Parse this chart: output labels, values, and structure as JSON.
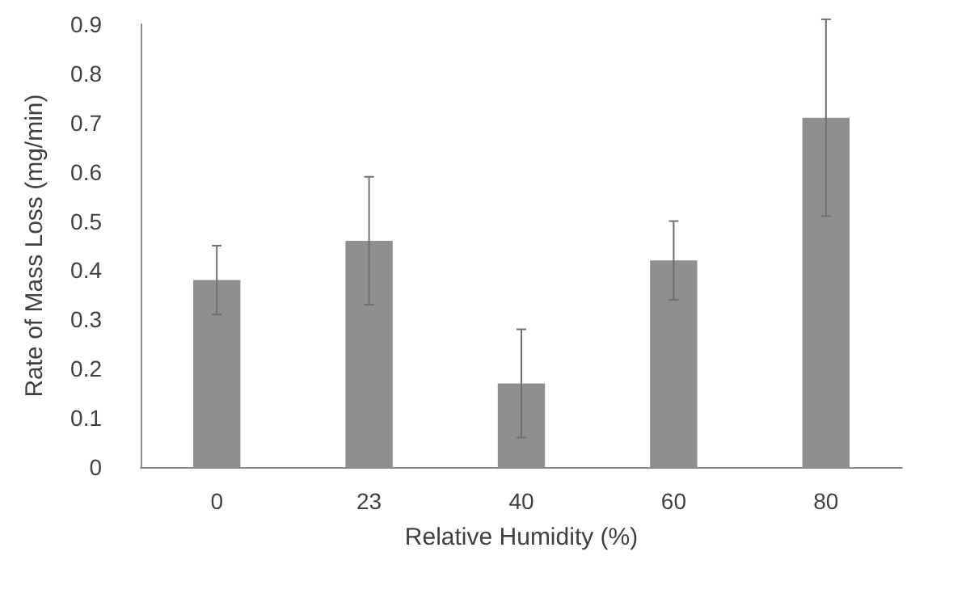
{
  "chart_data": {
    "type": "bar",
    "xlabel": "Relative Humidity (%)",
    "ylabel": "Rate of Mass Loss (mg/min)",
    "categories": [
      "0",
      "23",
      "40",
      "60",
      "80"
    ],
    "values": [
      0.38,
      0.46,
      0.17,
      0.42,
      0.71
    ],
    "errors": [
      0.07,
      0.13,
      0.11,
      0.08,
      0.2
    ],
    "color": "#8f8f8f",
    "ylim": [
      0,
      0.9
    ],
    "yticks": [
      0,
      0.1,
      0.2,
      0.3,
      0.4,
      0.5,
      0.6,
      0.7,
      0.8,
      0.9
    ],
    "grid": false
  }
}
